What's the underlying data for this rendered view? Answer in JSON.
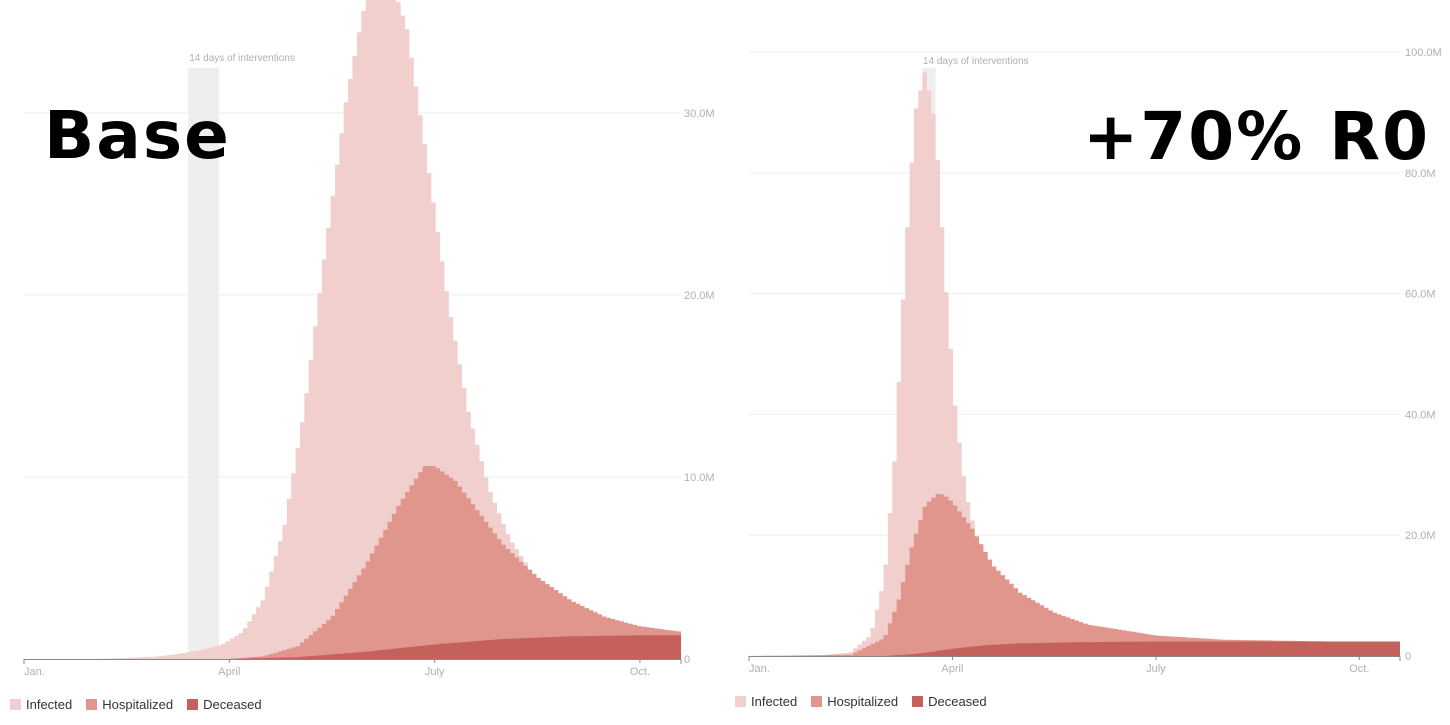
{
  "colors": {
    "infected": "#f1cfcc",
    "hospitalized": "#e0958d",
    "deceased": "#c5615b",
    "intervention": "#eeeeee",
    "grid": "#eeeeee",
    "tick": "#b0b0b0",
    "axis": "#888888"
  },
  "legend": {
    "infected": "Infected",
    "hospitalized": "Hospitalized",
    "deceased": "Deceased"
  },
  "chart_data": [
    {
      "type": "area",
      "panel_label": "Base",
      "title": "",
      "xlabel": "",
      "ylabel": "",
      "annotation": "14 days of interventions",
      "x_unit": "month",
      "xlim": [
        1.0,
        10.6
      ],
      "xticks": [
        {
          "x": 1.0,
          "label": "Jan."
        },
        {
          "x": 4.0,
          "label": "April"
        },
        {
          "x": 7.0,
          "label": "July"
        },
        {
          "x": 10.0,
          "label": "Oct."
        }
      ],
      "ylim": [
        0,
        34.0
      ],
      "yticks": [
        {
          "y": 0,
          "label": "0"
        },
        {
          "y": 10,
          "label": "10.0M"
        },
        {
          "y": 20,
          "label": "20.0M"
        },
        {
          "y": 30,
          "label": "30.0M"
        }
      ],
      "grid": true,
      "intervention": [
        3.4,
        3.85
      ],
      "series": [
        {
          "name": "Infected",
          "color_key": "infected",
          "x": [
            1.0,
            2.0,
            2.5,
            3.0,
            3.3,
            3.6,
            3.9,
            4.2,
            4.5,
            4.8,
            5.1,
            5.4,
            5.7,
            5.95,
            6.2,
            6.35,
            6.6,
            6.9,
            7.2,
            7.5,
            7.8,
            8.1,
            8.4,
            8.7,
            9.0,
            9.5,
            10.0,
            10.6
          ],
          "values": [
            0,
            0.0,
            0.05,
            0.15,
            0.3,
            0.5,
            0.8,
            1.5,
            3.3,
            7.2,
            13.8,
            22.4,
            30.5,
            35.5,
            37.8,
            37.5,
            34.6,
            27.2,
            19.6,
            13.5,
            9.3,
            6.6,
            4.9,
            3.8,
            2.9,
            2.1,
            1.7,
            1.5
          ]
        },
        {
          "name": "Hospitalized",
          "color_key": "hospitalized",
          "x": [
            1.0,
            4.0,
            4.5,
            5.0,
            5.5,
            6.0,
            6.5,
            6.85,
            7.0,
            7.3,
            7.6,
            8.0,
            8.5,
            9.0,
            9.5,
            10.0,
            10.6
          ],
          "values": [
            0,
            0.0,
            0.15,
            0.7,
            2.3,
            5.2,
            8.6,
            10.6,
            10.6,
            9.8,
            8.3,
            6.3,
            4.5,
            3.2,
            2.3,
            1.8,
            1.5
          ]
        },
        {
          "name": "Deceased",
          "color_key": "deceased",
          "x": [
            1.0,
            4.0,
            5.0,
            6.0,
            7.0,
            8.0,
            9.0,
            10.0,
            10.6
          ],
          "values": [
            0,
            0.0,
            0.1,
            0.4,
            0.8,
            1.1,
            1.25,
            1.3,
            1.3
          ]
        }
      ]
    },
    {
      "type": "area",
      "panel_label": "+70% R0",
      "title": "",
      "xlabel": "",
      "ylabel": "",
      "annotation": "14 days of interventions",
      "x_unit": "month",
      "xlim": [
        1.0,
        10.6
      ],
      "xticks": [
        {
          "x": 1.0,
          "label": "Jan."
        },
        {
          "x": 4.0,
          "label": "April"
        },
        {
          "x": 7.0,
          "label": "July"
        },
        {
          "x": 10.0,
          "label": "Oct."
        }
      ],
      "ylim": [
        0,
        102.0
      ],
      "yticks": [
        {
          "y": 0,
          "label": "0"
        },
        {
          "y": 20,
          "label": "20.0M"
        },
        {
          "y": 40,
          "label": "40.0M"
        },
        {
          "y": 60,
          "label": "60.0M"
        },
        {
          "y": 80,
          "label": "80.0M"
        },
        {
          "y": 100,
          "label": "100.0M"
        }
      ],
      "grid": true,
      "intervention": [
        3.55,
        3.75
      ],
      "series": [
        {
          "name": "Infected",
          "color_key": "infected",
          "x": [
            1.0,
            2.0,
            2.5,
            2.8,
            3.0,
            3.15,
            3.3,
            3.45,
            3.6,
            3.75,
            3.9,
            4.05,
            4.2,
            4.4,
            4.7,
            5.0,
            5.5,
            6.0,
            7.0,
            8.0,
            9.0,
            10.6
          ],
          "values": [
            0,
            0.05,
            0.6,
            3.5,
            13.0,
            33.0,
            65.0,
            90.0,
            97.0,
            88.0,
            62.0,
            40.0,
            27.0,
            17.5,
            11.5,
            8.0,
            5.3,
            4.0,
            2.9,
            2.4,
            2.3,
            2.2
          ]
        },
        {
          "name": "Hospitalized",
          "color_key": "hospitalized",
          "x": [
            1.0,
            2.5,
            3.0,
            3.2,
            3.4,
            3.6,
            3.8,
            3.9,
            4.0,
            4.3,
            4.6,
            5.0,
            5.5,
            6.0,
            7.0,
            8.0,
            10.6
          ],
          "values": [
            0,
            0.2,
            3.0,
            9.0,
            18.0,
            25.0,
            27.0,
            26.5,
            25.5,
            21.0,
            15.0,
            10.5,
            7.2,
            5.2,
            3.4,
            2.7,
            2.2
          ]
        },
        {
          "name": "Deceased",
          "color_key": "deceased",
          "x": [
            1.0,
            3.0,
            3.5,
            4.0,
            4.5,
            5.0,
            6.0,
            7.0,
            8.0,
            10.6
          ],
          "values": [
            0,
            0.0,
            0.4,
            1.2,
            1.8,
            2.1,
            2.3,
            2.4,
            2.4,
            2.4
          ]
        }
      ]
    }
  ]
}
